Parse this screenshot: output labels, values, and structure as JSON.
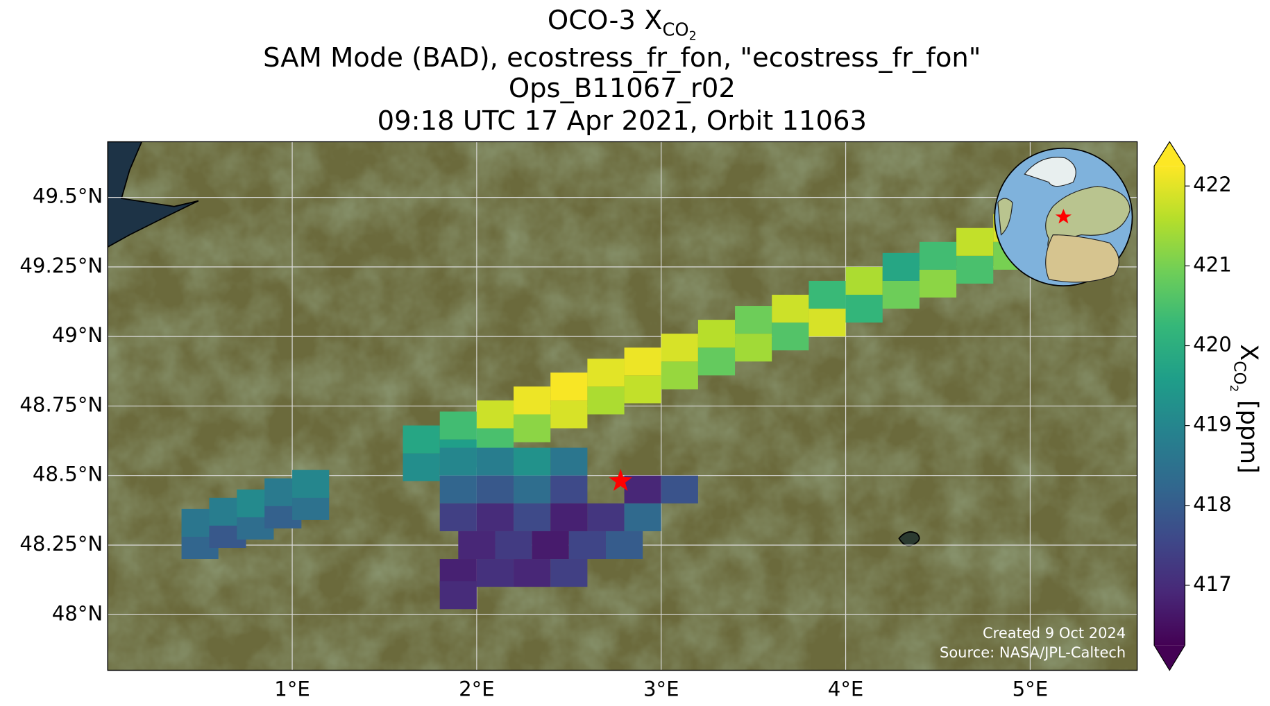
{
  "chart_data": {
    "type": "map",
    "title": {
      "prefix": "OCO-3 X",
      "sub": "CO",
      "subsub": "2"
    },
    "subtitle_lines": [
      "SAM Mode (BAD), ecostress_fr_fon, \"ecostress_fr_fon\"",
      "Ops_B11067_r02",
      "09:18 UTC 17 Apr 2021, Orbit 11063"
    ],
    "xlim": [
      0,
      5.58
    ],
    "ylim": [
      47.8,
      49.7
    ],
    "xticks": [
      {
        "value": 1,
        "label": "1°E"
      },
      {
        "value": 2,
        "label": "2°E"
      },
      {
        "value": 3,
        "label": "3°E"
      },
      {
        "value": 4,
        "label": "4°E"
      },
      {
        "value": 5,
        "label": "5°E"
      }
    ],
    "yticks": [
      {
        "value": 48,
        "label": "48°N"
      },
      {
        "value": 48.25,
        "label": "48.25°N"
      },
      {
        "value": 48.5,
        "label": "48.5°N"
      },
      {
        "value": 48.75,
        "label": "48.75°N"
      },
      {
        "value": 49,
        "label": "49°N"
      },
      {
        "value": 49.25,
        "label": "49.25°N"
      },
      {
        "value": 49.5,
        "label": "49.5°N"
      }
    ],
    "grid": true,
    "colormap": "viridis",
    "clim": [
      416.25,
      422.25
    ],
    "cticks": [
      417,
      418,
      419,
      420,
      421,
      422
    ],
    "colorbar_label": {
      "prefix": "X",
      "sub": "CO",
      "subsub": "2",
      "suffix": "[ppm]"
    },
    "soundings": {
      "x": [
        0.5,
        0.5,
        0.65,
        0.65,
        0.8,
        0.8,
        0.95,
        0.95,
        1.1,
        1.1,
        1.7,
        1.7,
        1.9,
        1.9,
        2.1,
        2.1,
        2.3,
        2.3,
        2.5,
        2.5,
        2.7,
        2.7,
        2.9,
        2.9,
        3.1,
        3.1,
        3.3,
        3.3,
        3.5,
        3.5,
        3.7,
        3.7,
        3.9,
        3.9,
        4.1,
        4.1,
        4.3,
        4.3,
        4.5,
        4.5,
        4.7,
        4.7,
        4.9,
        4.9,
        1.9,
        2.1,
        2.3,
        2.5,
        1.9,
        2.1,
        2.3,
        2.5,
        2.9,
        3.1,
        1.9,
        2.1,
        2.3,
        2.5,
        2.7,
        2.9,
        2.0,
        2.2,
        2.4,
        2.6,
        2.8,
        1.9,
        2.1,
        2.3,
        2.5,
        1.9
      ],
      "y": [
        48.25,
        48.33,
        48.29,
        48.37,
        48.32,
        48.4,
        48.36,
        48.44,
        48.39,
        48.47,
        48.53,
        48.63,
        48.58,
        48.68,
        48.62,
        48.72,
        48.67,
        48.77,
        48.72,
        48.82,
        48.77,
        48.87,
        48.81,
        48.91,
        48.86,
        48.96,
        48.91,
        49.01,
        48.96,
        49.06,
        49.0,
        49.1,
        49.05,
        49.15,
        49.1,
        49.2,
        49.15,
        49.25,
        49.19,
        49.29,
        49.24,
        49.34,
        49.29,
        49.39,
        48.55,
        48.55,
        48.55,
        48.55,
        48.45,
        48.45,
        48.45,
        48.45,
        48.45,
        48.45,
        48.35,
        48.35,
        48.35,
        48.35,
        48.35,
        48.35,
        48.25,
        48.25,
        48.25,
        48.25,
        48.25,
        48.15,
        48.15,
        48.15,
        48.15,
        48.07
      ],
      "values": [
        418.2,
        418.6,
        417.9,
        418.8,
        418.4,
        419.1,
        418.1,
        418.7,
        418.5,
        419.0,
        419.2,
        419.8,
        419.6,
        420.4,
        420.5,
        421.8,
        421.2,
        422.1,
        421.9,
        422.2,
        421.5,
        422.0,
        421.7,
        422.1,
        421.3,
        421.9,
        420.8,
        421.6,
        421.4,
        420.9,
        420.6,
        421.8,
        421.9,
        420.3,
        420.2,
        421.5,
        420.9,
        419.8,
        421.2,
        420.4,
        420.5,
        421.7,
        421.0,
        421.9,
        419.0,
        418.8,
        419.3,
        418.6,
        418.2,
        417.9,
        418.4,
        417.6,
        416.9,
        417.8,
        417.4,
        417.0,
        417.6,
        416.8,
        417.2,
        418.3,
        416.9,
        417.3,
        416.7,
        417.5,
        418.0,
        416.8,
        417.1,
        416.9,
        417.4,
        417.0
      ]
    },
    "target": {
      "lon": 2.78,
      "lat": 48.48
    },
    "credits": [
      "Created 9 Oct 2024",
      "Source: NASA/JPL-Caltech"
    ]
  }
}
